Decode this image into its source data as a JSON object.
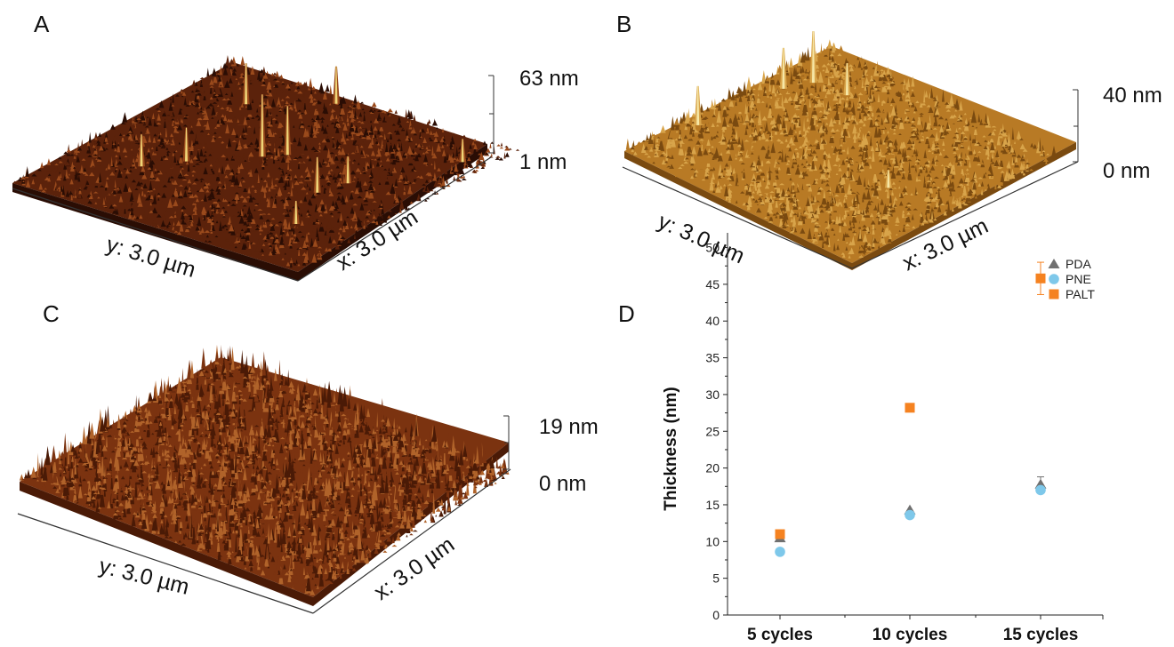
{
  "panels": {
    "A": {
      "letter": "A",
      "x_axis": "x: 3.0 µm",
      "y_axis": "y: 3.0 µm",
      "scale_max": "63 nm",
      "scale_min": "1 nm",
      "colors": {
        "dark": "#2a0d04",
        "mid": "#5b220b",
        "light": "#9a4a1c",
        "peak": "#f0d678"
      }
    },
    "B": {
      "letter": "B",
      "x_axis": "x: 3.0 µm",
      "y_axis": "y: 3.0 µm",
      "scale_max": "40 nm",
      "scale_min": "0 nm",
      "colors": {
        "dark": "#7a4a10",
        "mid": "#b87a25",
        "light": "#d8a44a",
        "peak": "#f6e7a6"
      }
    },
    "C": {
      "letter": "C",
      "x_axis": "x: 3.0 µm",
      "y_axis": "y: 3.0 µm",
      "scale_max": "19 nm",
      "scale_min": "0 nm",
      "colors": {
        "dark": "#4a1a06",
        "mid": "#7b3310",
        "light": "#b0632a",
        "peak": "#d99555"
      }
    },
    "D": {
      "letter": "D"
    }
  },
  "chart_data": {
    "type": "scatter",
    "categories": [
      "5 cycles",
      "10 cycles",
      "15 cycles"
    ],
    "ylabel": "Thickness (nm)",
    "xlabel": "",
    "ylim": [
      0,
      52
    ],
    "yticks": [
      "0",
      "5",
      "10",
      "15",
      "20",
      "25",
      "30",
      "35",
      "40",
      "45",
      "50"
    ],
    "grid": false,
    "legend_position": "top-right",
    "series": [
      {
        "name": "PDA",
        "marker": "triangle",
        "color": "#707070",
        "values": [
          10.5,
          14.3,
          17.8
        ],
        "errors": [
          0.3,
          0.4,
          1.0
        ]
      },
      {
        "name": "PNE",
        "marker": "circle",
        "color": "#7ec8ea",
        "values": [
          8.6,
          13.6,
          17.0
        ],
        "errors": [
          0.3,
          0.4,
          0.4
        ]
      },
      {
        "name": "PALT",
        "marker": "square",
        "color": "#f58220",
        "values": [
          11.0,
          28.2,
          45.8
        ],
        "errors": [
          0.3,
          0.3,
          2.2
        ]
      }
    ]
  }
}
